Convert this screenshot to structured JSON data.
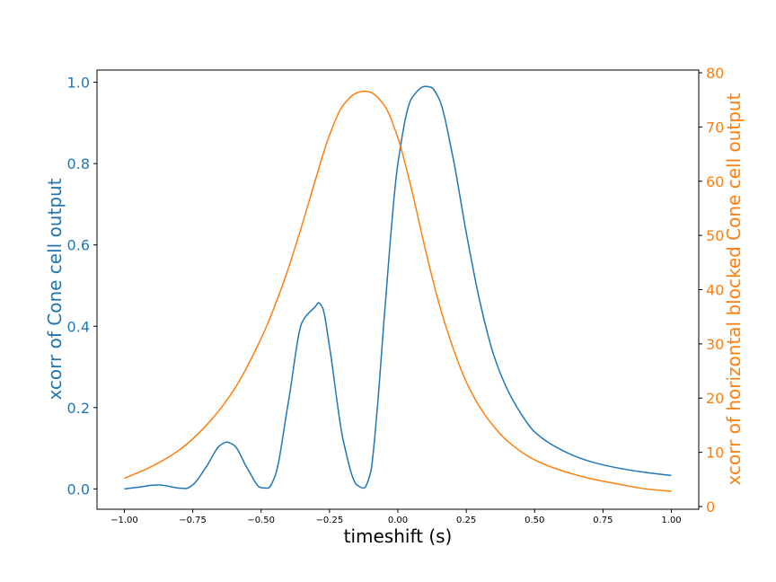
{
  "colors": {
    "series1": "#1f77b4",
    "series2": "#ff7f0e",
    "axes": "#000000",
    "background": "#ffffff"
  },
  "chart_data": {
    "type": "line",
    "title": "",
    "xlabel": "timeshift (s)",
    "ylabel_left": "xcorr of Cone cell output",
    "ylabel_right": "xcorr of horizontal blocked Cone cell output",
    "xlim": [
      -1.1,
      1.1
    ],
    "ylim_left": [
      -0.05,
      1.03
    ],
    "ylim_right": [
      -0.5,
      80.5
    ],
    "xticks": [
      -1.0,
      -0.75,
      -0.5,
      -0.25,
      0.0,
      0.25,
      0.5,
      0.75,
      1.0
    ],
    "xtick_labels": [
      "−1.00",
      "−0.75",
      "−0.50",
      "−0.25",
      "0.00",
      "0.25",
      "0.50",
      "0.75",
      "1.00"
    ],
    "yticks_left": [
      0.0,
      0.2,
      0.4,
      0.6,
      0.8,
      1.0
    ],
    "ytick_labels_left": [
      "0.0",
      "0.2",
      "0.4",
      "0.6",
      "0.8",
      "1.0"
    ],
    "yticks_right": [
      0,
      10,
      20,
      30,
      40,
      50,
      60,
      70,
      80
    ],
    "ytick_labels_right": [
      "0",
      "10",
      "20",
      "30",
      "40",
      "50",
      "60",
      "70",
      "80"
    ],
    "grid": false,
    "legend": "none",
    "series": [
      {
        "axis": "left",
        "color": "#1f77b4",
        "x": [
          -1.0,
          -0.95,
          -0.9,
          -0.875,
          -0.85,
          -0.8,
          -0.775,
          -0.75,
          -0.7,
          -0.65,
          -0.625,
          -0.6,
          -0.55,
          -0.5,
          -0.475,
          -0.45,
          -0.4,
          -0.35,
          -0.3,
          -0.29,
          -0.275,
          -0.25,
          -0.2,
          -0.15,
          -0.125,
          -0.1,
          -0.075,
          -0.05,
          0.0,
          0.05,
          0.1,
          0.12,
          0.15,
          0.2,
          0.25,
          0.3,
          0.35,
          0.4,
          0.45,
          0.5,
          0.6,
          0.7,
          0.8,
          0.9,
          1.0
        ],
        "y": [
          0.0,
          0.004,
          0.009,
          0.01,
          0.008,
          0.002,
          0.001,
          0.01,
          0.055,
          0.107,
          0.115,
          0.108,
          0.05,
          0.003,
          0.002,
          0.03,
          0.215,
          0.41,
          0.45,
          0.458,
          0.445,
          0.35,
          0.12,
          0.01,
          0.002,
          0.04,
          0.2,
          0.42,
          0.8,
          0.96,
          0.99,
          0.988,
          0.96,
          0.82,
          0.63,
          0.46,
          0.33,
          0.245,
          0.185,
          0.14,
          0.095,
          0.068,
          0.052,
          0.041,
          0.033
        ]
      },
      {
        "axis": "right",
        "color": "#ff7f0e",
        "x": [
          -1.0,
          -0.9,
          -0.8,
          -0.7,
          -0.6,
          -0.5,
          -0.45,
          -0.4,
          -0.35,
          -0.3,
          -0.25,
          -0.2,
          -0.15,
          -0.12,
          -0.1,
          -0.05,
          0.0,
          0.05,
          0.1,
          0.15,
          0.2,
          0.25,
          0.3,
          0.35,
          0.4,
          0.5,
          0.6,
          0.7,
          0.8,
          0.9,
          1.0
        ],
        "y": [
          5.2,
          7.4,
          10.4,
          15.0,
          21.5,
          31.0,
          37.0,
          44.0,
          52.0,
          60.5,
          68.5,
          74.0,
          76.3,
          76.6,
          76.4,
          74.0,
          68.0,
          58.5,
          47.5,
          37.5,
          29.5,
          23.0,
          18.3,
          14.8,
          12.1,
          8.6,
          6.6,
          5.2,
          4.2,
          3.3,
          2.8
        ]
      }
    ]
  }
}
